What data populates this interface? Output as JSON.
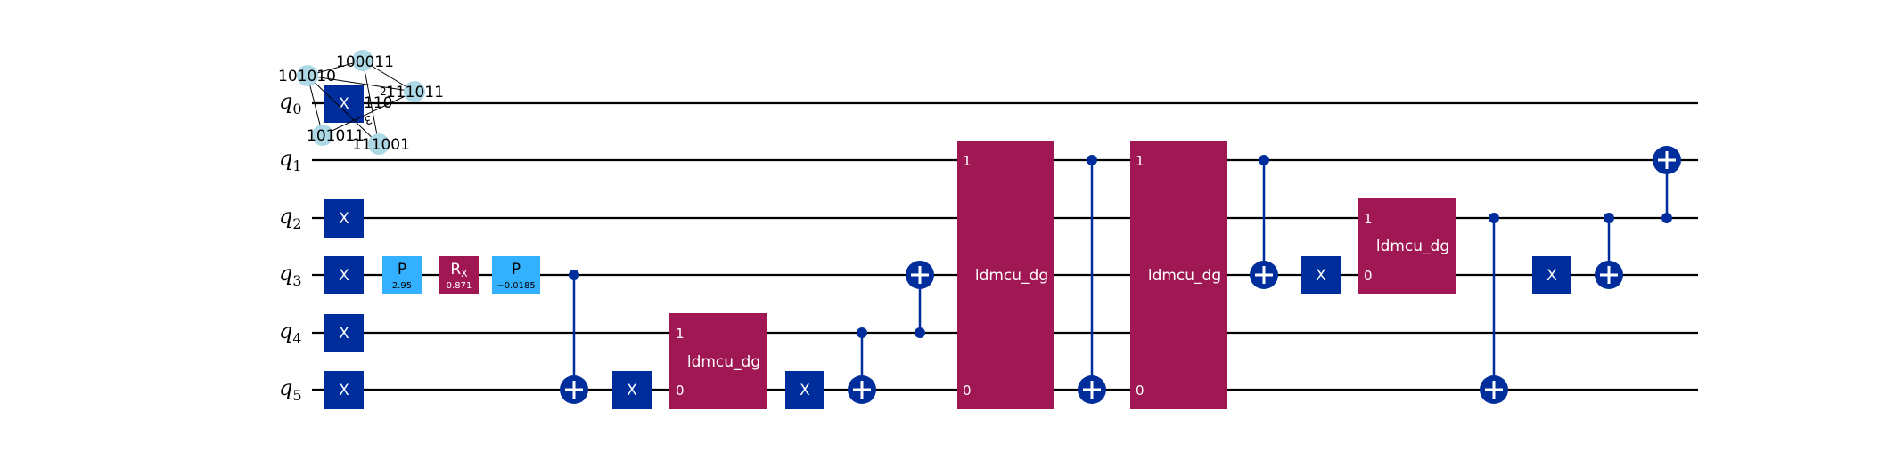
{
  "colors": {
    "wire": "#000000",
    "x_gate": "#002D9C",
    "phase_gate": "#33B1FF",
    "rx_gate": "#9F1853",
    "custom_gate": "#9F1853",
    "control": "#002D9C",
    "overlay_node": "#ADD8E6",
    "gate_text": "#FFFFFF"
  },
  "qubits": [
    {
      "name": "q",
      "index": "0"
    },
    {
      "name": "q",
      "index": "1"
    },
    {
      "name": "q",
      "index": "2"
    },
    {
      "name": "q",
      "index": "3"
    },
    {
      "name": "q",
      "index": "4"
    },
    {
      "name": "q",
      "index": "5"
    }
  ],
  "gates": {
    "x_label": "X",
    "p_label": "P",
    "rx_label": "R",
    "rx_sub": "X",
    "custom_label": "ldmcu_dg",
    "p1_param": "2.95",
    "rx_param": "0.871",
    "p2_param": "−0.0185",
    "port_top": "1",
    "port_bottom": "0"
  },
  "overlay_labels": [
    "101010",
    "100011",
    "110",
    "111011",
    "101011",
    "111001",
    "3",
    "2"
  ]
}
